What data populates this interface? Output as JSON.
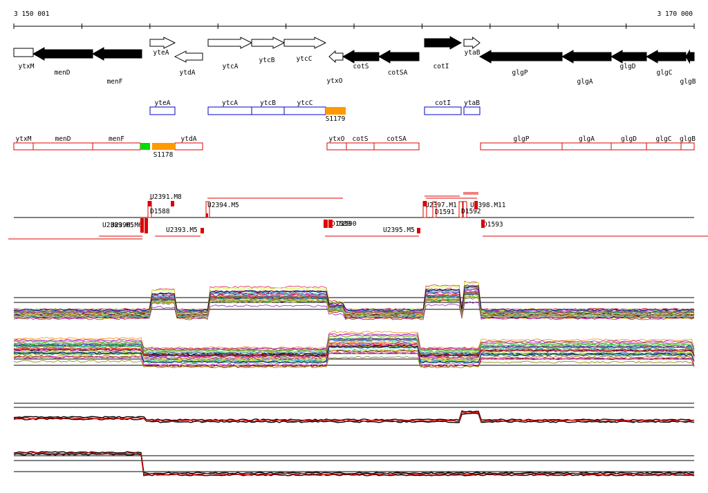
{
  "coords": {
    "start_label": "3 150 001",
    "end_label": "3 170 000"
  },
  "colors": {
    "gene_fill": "#000000",
    "gene_outline": "#000000",
    "blue_box": "#0000cc",
    "red_box": "#dd0000",
    "orange_feature": "#ff9900",
    "green_feature": "#00dd00",
    "track_red": "#dd0000"
  },
  "genes": [
    {
      "name": "ytxM",
      "strand": "plus",
      "filled": false
    },
    {
      "name": "menD",
      "strand": "minus",
      "filled": true
    },
    {
      "name": "menF",
      "strand": "minus",
      "filled": true
    },
    {
      "name": "yteA",
      "strand": "plus",
      "filled": false
    },
    {
      "name": "ytdA",
      "strand": "minus",
      "filled": false
    },
    {
      "name": "ytcA",
      "strand": "plus",
      "filled": false
    },
    {
      "name": "ytcB",
      "strand": "plus",
      "filled": false
    },
    {
      "name": "ytcC",
      "strand": "plus",
      "filled": false
    },
    {
      "name": "ytxO",
      "strand": "minus",
      "filled": false
    },
    {
      "name": "cotS",
      "strand": "minus",
      "filled": true
    },
    {
      "name": "cotSA",
      "strand": "minus",
      "filled": true
    },
    {
      "name": "cotI",
      "strand": "plus",
      "filled": true
    },
    {
      "name": "ytaB",
      "strand": "plus",
      "filled": false
    },
    {
      "name": "glgP",
      "strand": "minus",
      "filled": true
    },
    {
      "name": "glgA",
      "strand": "minus",
      "filled": true
    },
    {
      "name": "glgD",
      "strand": "minus",
      "filled": true
    },
    {
      "name": "glgC",
      "strand": "minus",
      "filled": true
    },
    {
      "name": "glgB",
      "strand": "minus",
      "filled": true
    }
  ],
  "blue_track": {
    "boxes": [
      "yteA",
      "ytcA",
      "ytcB",
      "ytcC",
      "cotI",
      "ytaB"
    ],
    "feature": "S1179"
  },
  "red_track": {
    "boxes": [
      "ytxM",
      "menD",
      "menF",
      "ytdA",
      "ytxO",
      "cotS",
      "cotSA",
      "glgP",
      "glgA",
      "glgD",
      "glgC",
      "glgB"
    ],
    "feature": "S1178"
  },
  "upper_features": [
    "U2391.M8",
    "D1588",
    "U2394.M5",
    "U2397.M1",
    "U2398.M11",
    "D1591",
    "D1592"
  ],
  "lower_features": [
    "U2389.M5",
    "U2390.M6",
    "U2393.M5",
    "D1589",
    "D1590",
    "U2395.M5",
    "D1593"
  ],
  "lower_label_visible": [
    "U2",
    "1",
    "0",
    "D1593"
  ]
}
